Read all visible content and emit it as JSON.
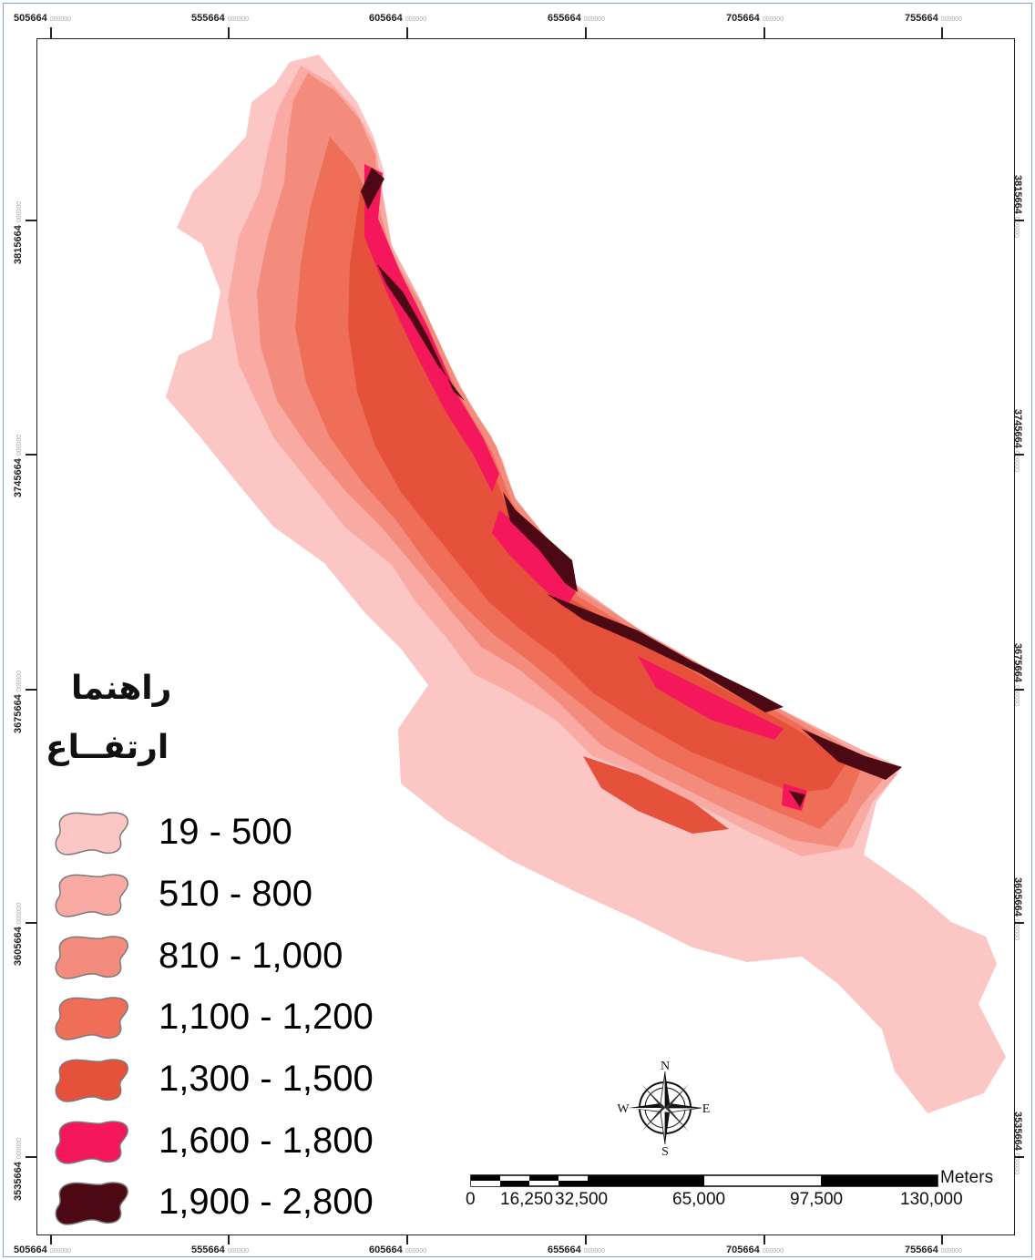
{
  "map": {
    "x_ticks": [
      "505664",
      "555664",
      "605664",
      "655664",
      "705664",
      "755664"
    ],
    "y_ticks": [
      "3815664",
      "3745664",
      "3675664",
      "3605664",
      "3535664"
    ],
    "tick_suffix": "000000"
  },
  "legend": {
    "title": "راهنما",
    "subtitle": "ارتفــاع",
    "classes": [
      {
        "label": "19 - 500",
        "color": "#fbc6c4"
      },
      {
        "label": "510 - 800",
        "color": "#f9aaa3"
      },
      {
        "label": "810 - 1,000",
        "color": "#f48c7e"
      },
      {
        "label": "1,100 - 1,200",
        "color": "#ee6e58"
      },
      {
        "label": "1,300 - 1,500",
        "color": "#e5513a"
      },
      {
        "label": "1,600 - 1,800",
        "color": "#f5175c"
      },
      {
        "label": "1,900 - 2,800",
        "color": "#4d0913"
      }
    ]
  },
  "scale_bar": {
    "unit": "Meters",
    "labels": [
      "0",
      "16,250",
      "32,500",
      "65,000",
      "97,500",
      "130,000"
    ]
  },
  "compass": {
    "n": "N",
    "s": "S",
    "e": "E",
    "w": "W"
  }
}
